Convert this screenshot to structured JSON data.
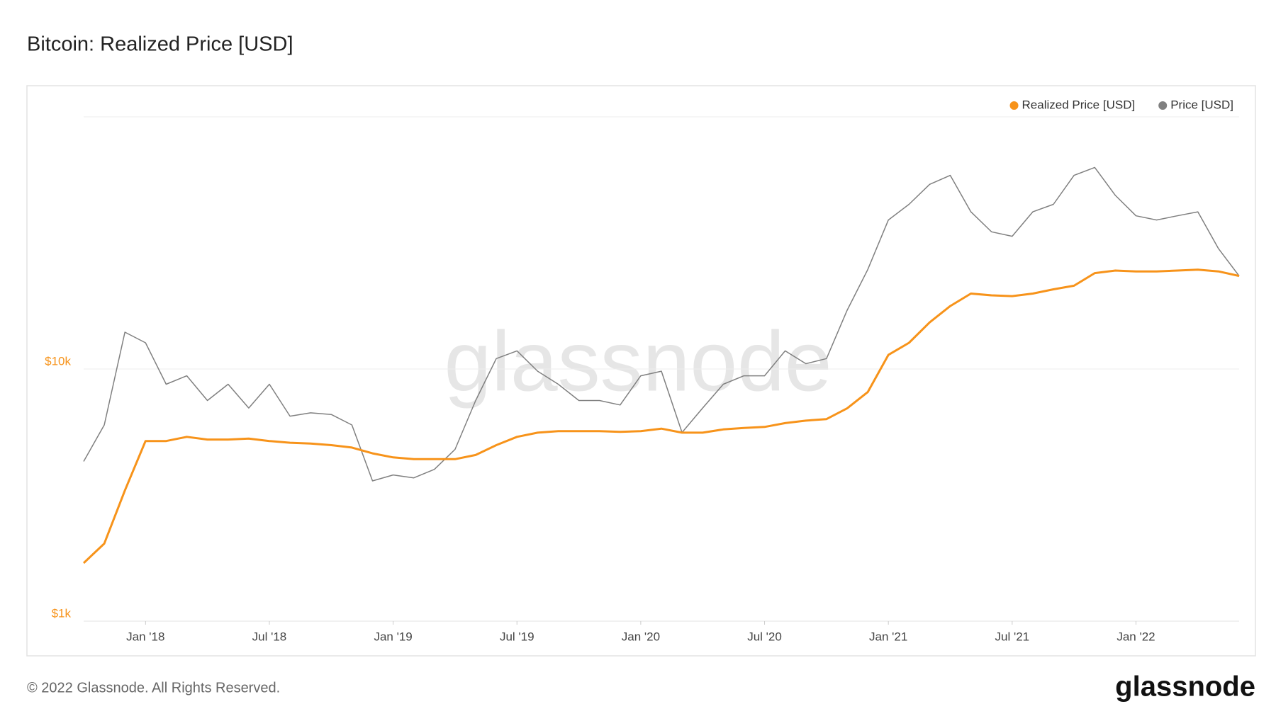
{
  "chart_data": {
    "type": "line",
    "title": "Bitcoin: Realized Price [USD]",
    "watermark": "glassnode",
    "footer": "© 2022 Glassnode. All Rights Reserved.",
    "brand": "glassnode",
    "log_scale": true,
    "grid": true,
    "legend": "top-right",
    "x": [
      "2017-10",
      "2017-11",
      "2017-12",
      "2018-01",
      "2018-02",
      "2018-03",
      "2018-04",
      "2018-05",
      "2018-06",
      "2018-07",
      "2018-08",
      "2018-09",
      "2018-10",
      "2018-11",
      "2018-12",
      "2019-01",
      "2019-02",
      "2019-03",
      "2019-04",
      "2019-05",
      "2019-06",
      "2019-07",
      "2019-08",
      "2019-09",
      "2019-10",
      "2019-11",
      "2019-12",
      "2020-01",
      "2020-02",
      "2020-03",
      "2020-04",
      "2020-05",
      "2020-06",
      "2020-07",
      "2020-08",
      "2020-09",
      "2020-10",
      "2020-11",
      "2020-12",
      "2021-01",
      "2021-02",
      "2021-03",
      "2021-04",
      "2021-05",
      "2021-06",
      "2021-07",
      "2021-08",
      "2021-09",
      "2021-10",
      "2021-11",
      "2021-12",
      "2022-01",
      "2022-02",
      "2022-03",
      "2022-04",
      "2022-05",
      "2022-06"
    ],
    "xlim": [
      "2017-10",
      "2022-06"
    ],
    "xticks": [
      {
        "value": "2018-01",
        "label": "Jan '18"
      },
      {
        "value": "2018-07",
        "label": "Jul '18"
      },
      {
        "value": "2019-01",
        "label": "Jan '19"
      },
      {
        "value": "2019-07",
        "label": "Jul '19"
      },
      {
        "value": "2020-01",
        "label": "Jan '20"
      },
      {
        "value": "2020-07",
        "label": "Jul '20"
      },
      {
        "value": "2021-01",
        "label": "Jan '21"
      },
      {
        "value": "2021-07",
        "label": "Jul '21"
      },
      {
        "value": "2022-01",
        "label": "Jan '22"
      }
    ],
    "ylim": [
      1000,
      100000
    ],
    "yticks": [
      {
        "value": 1000,
        "label": "$1k"
      },
      {
        "value": 10000,
        "label": "$10k"
      }
    ],
    "series": [
      {
        "name": "Realized Price [USD]",
        "color": "#f7931a",
        "values": [
          1700,
          2030,
          3300,
          5180,
          5180,
          5380,
          5250,
          5250,
          5300,
          5180,
          5100,
          5060,
          4990,
          4880,
          4630,
          4460,
          4390,
          4390,
          4390,
          4560,
          4990,
          5380,
          5590,
          5670,
          5670,
          5670,
          5630,
          5670,
          5800,
          5590,
          5590,
          5760,
          5840,
          5890,
          6100,
          6240,
          6330,
          6980,
          8100,
          11370,
          12700,
          15300,
          17770,
          19920,
          19600,
          19450,
          19920,
          20700,
          21400,
          24000,
          24570,
          24380,
          24380,
          24570,
          24760,
          24380,
          23400
        ]
      },
      {
        "name": "Price [USD]",
        "color": "#808080",
        "values": [
          4300,
          6000,
          14000,
          12700,
          8700,
          9400,
          7500,
          8700,
          7000,
          8700,
          6500,
          6700,
          6600,
          6000,
          3600,
          3800,
          3700,
          4000,
          4800,
          7500,
          11000,
          11800,
          9800,
          8700,
          7500,
          7500,
          7200,
          9400,
          9800,
          5600,
          7000,
          8700,
          9400,
          9400,
          11800,
          10500,
          11000,
          17100,
          24800,
          39000,
          45000,
          54000,
          58600,
          42000,
          35000,
          33600,
          42000,
          45000,
          58600,
          63000,
          48800,
          40500,
          39000,
          40500,
          42000,
          30000,
          23400
        ]
      }
    ]
  }
}
